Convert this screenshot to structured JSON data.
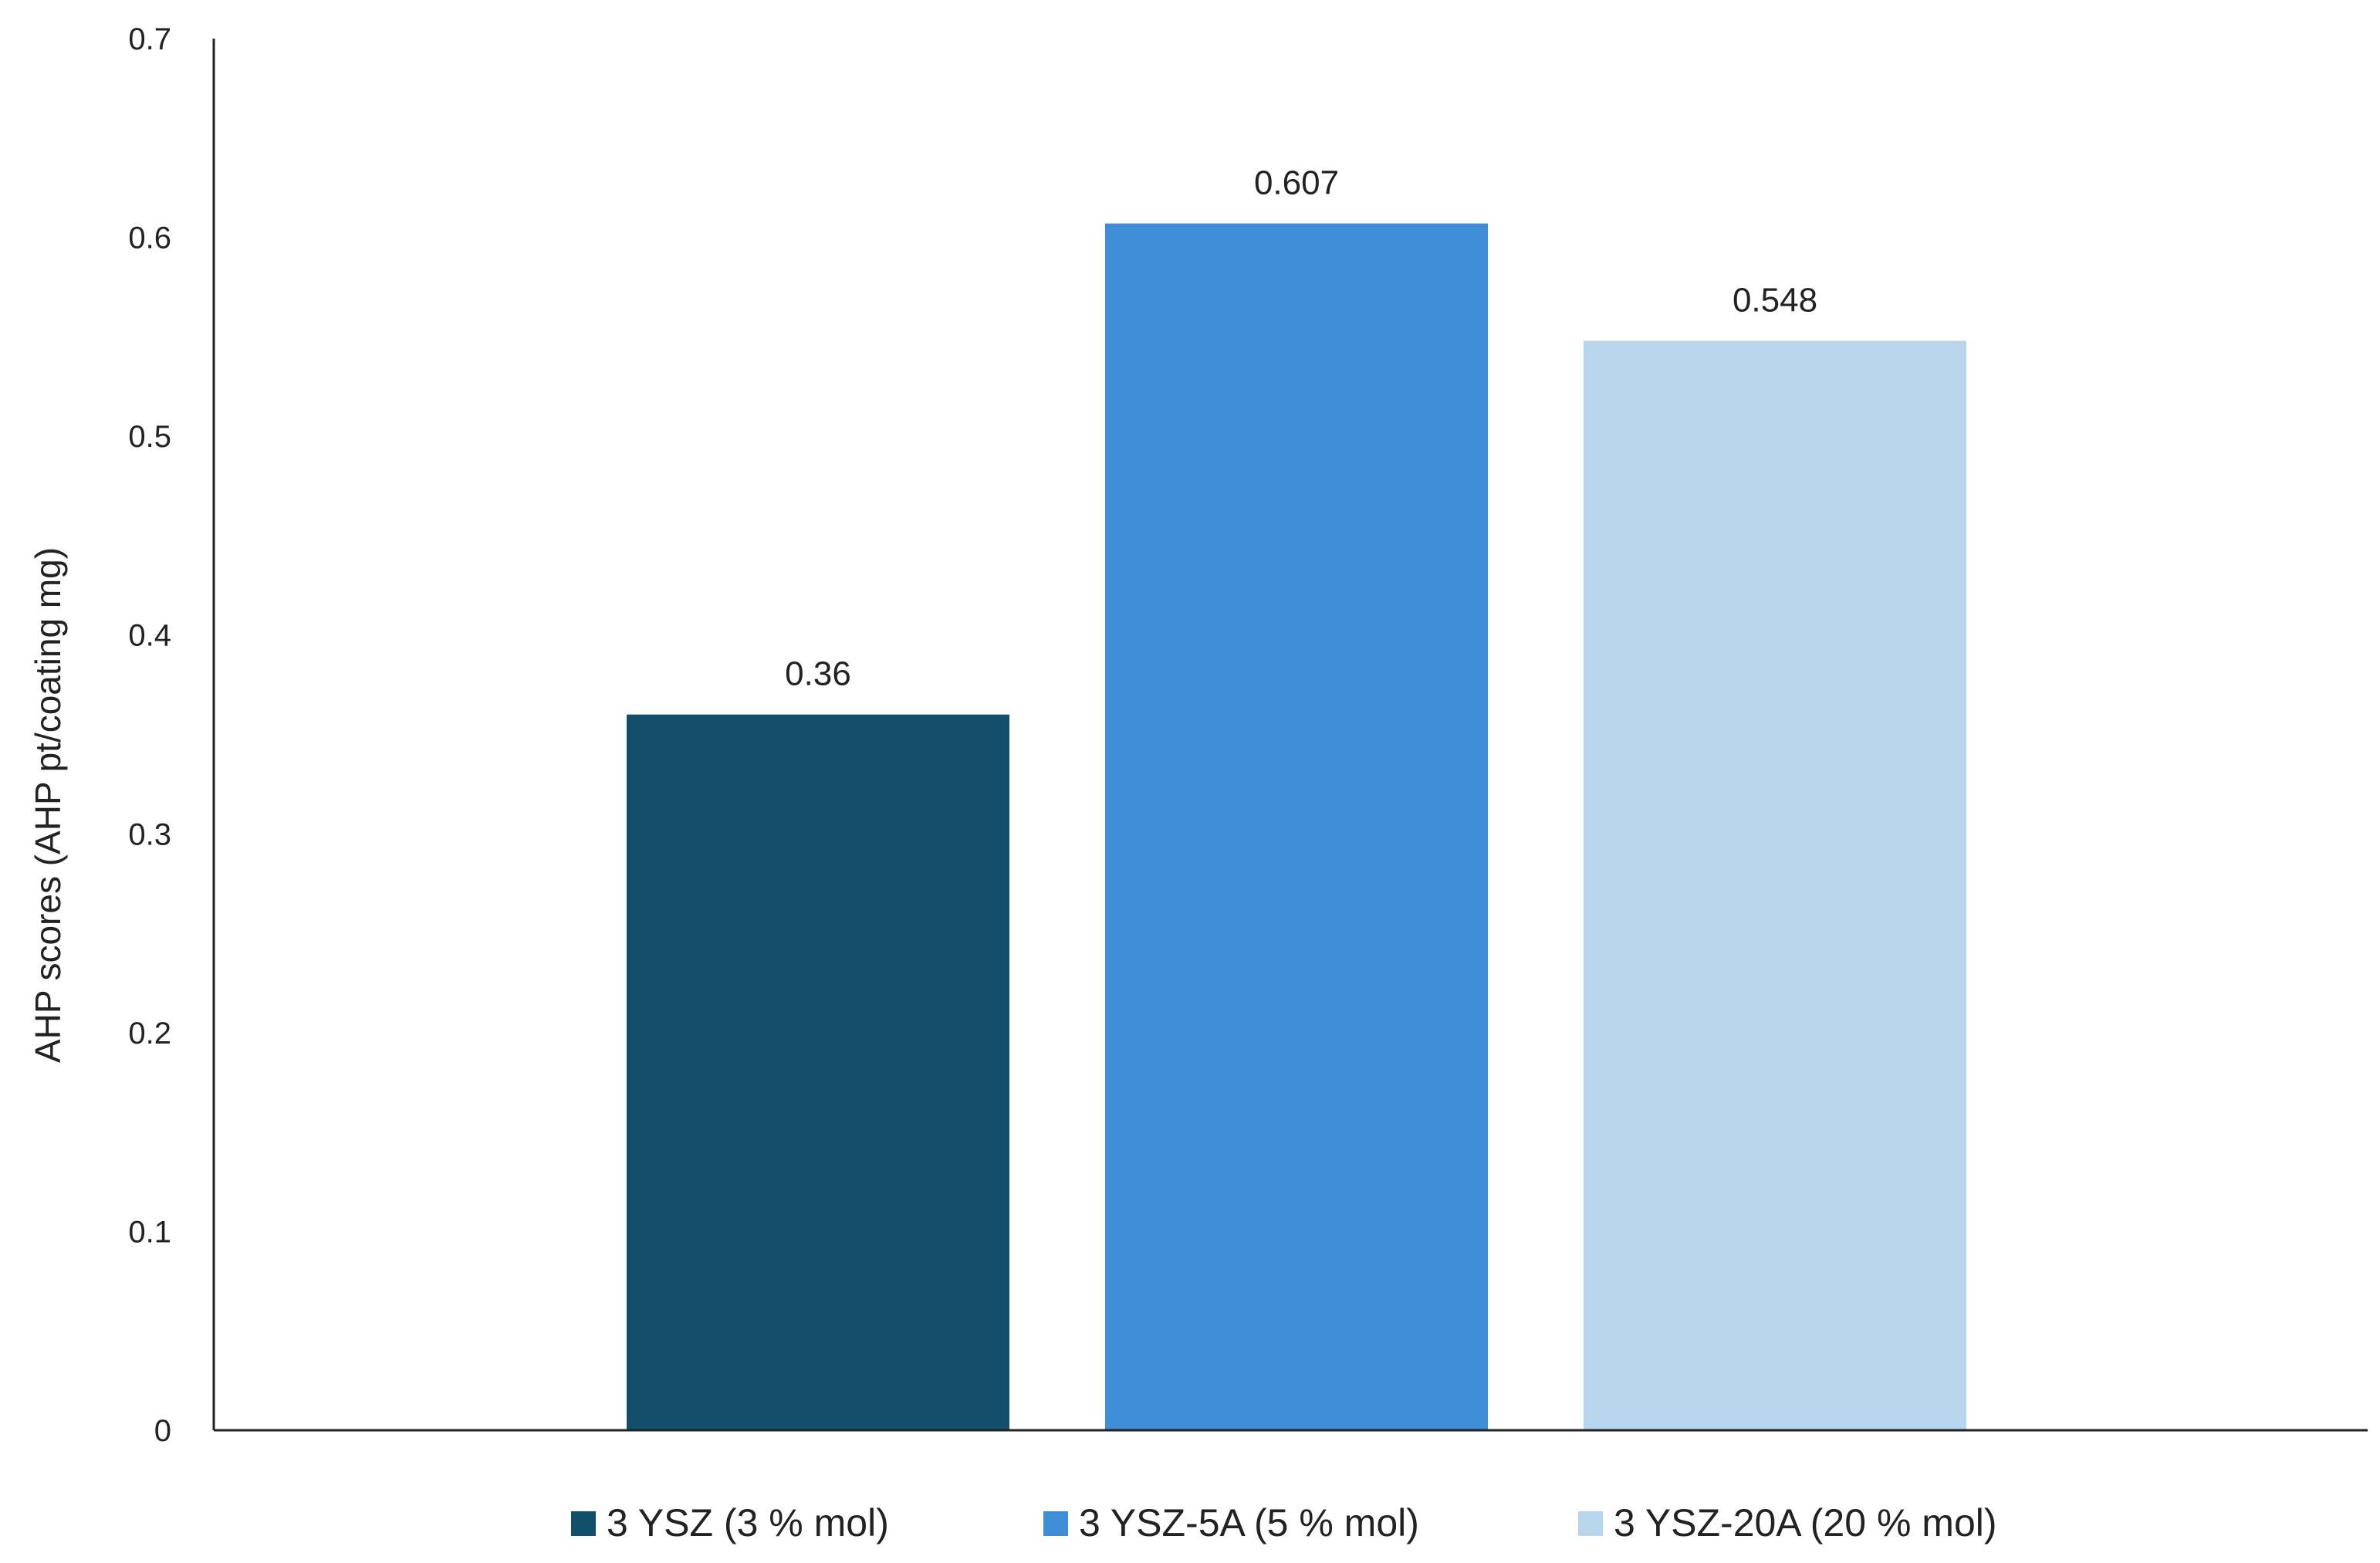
{
  "chart_data": {
    "type": "bar",
    "title": "",
    "xlabel": "",
    "ylabel": "AHP scores (AHP pt/coating mg)",
    "ylim": [
      0,
      0.7
    ],
    "yticks": [
      "0",
      "0.1",
      "0.2",
      "0.3",
      "0.4",
      "0.5",
      "0.6",
      "0.7"
    ],
    "grid": false,
    "legend_position": "bottom",
    "series": [
      {
        "name": "3 YSZ (3 % mol)",
        "values": [
          0.36
        ],
        "label": "0.36",
        "color": "#114f6b"
      },
      {
        "name": "3 YSZ-5A (5 % mol)",
        "values": [
          0.607
        ],
        "label": "0.607",
        "color": "#3f8dd6"
      },
      {
        "name": "3 YSZ-20A (20 % mol)",
        "values": [
          0.548
        ],
        "label": "0.548",
        "color": "#b8d5ee"
      }
    ]
  }
}
